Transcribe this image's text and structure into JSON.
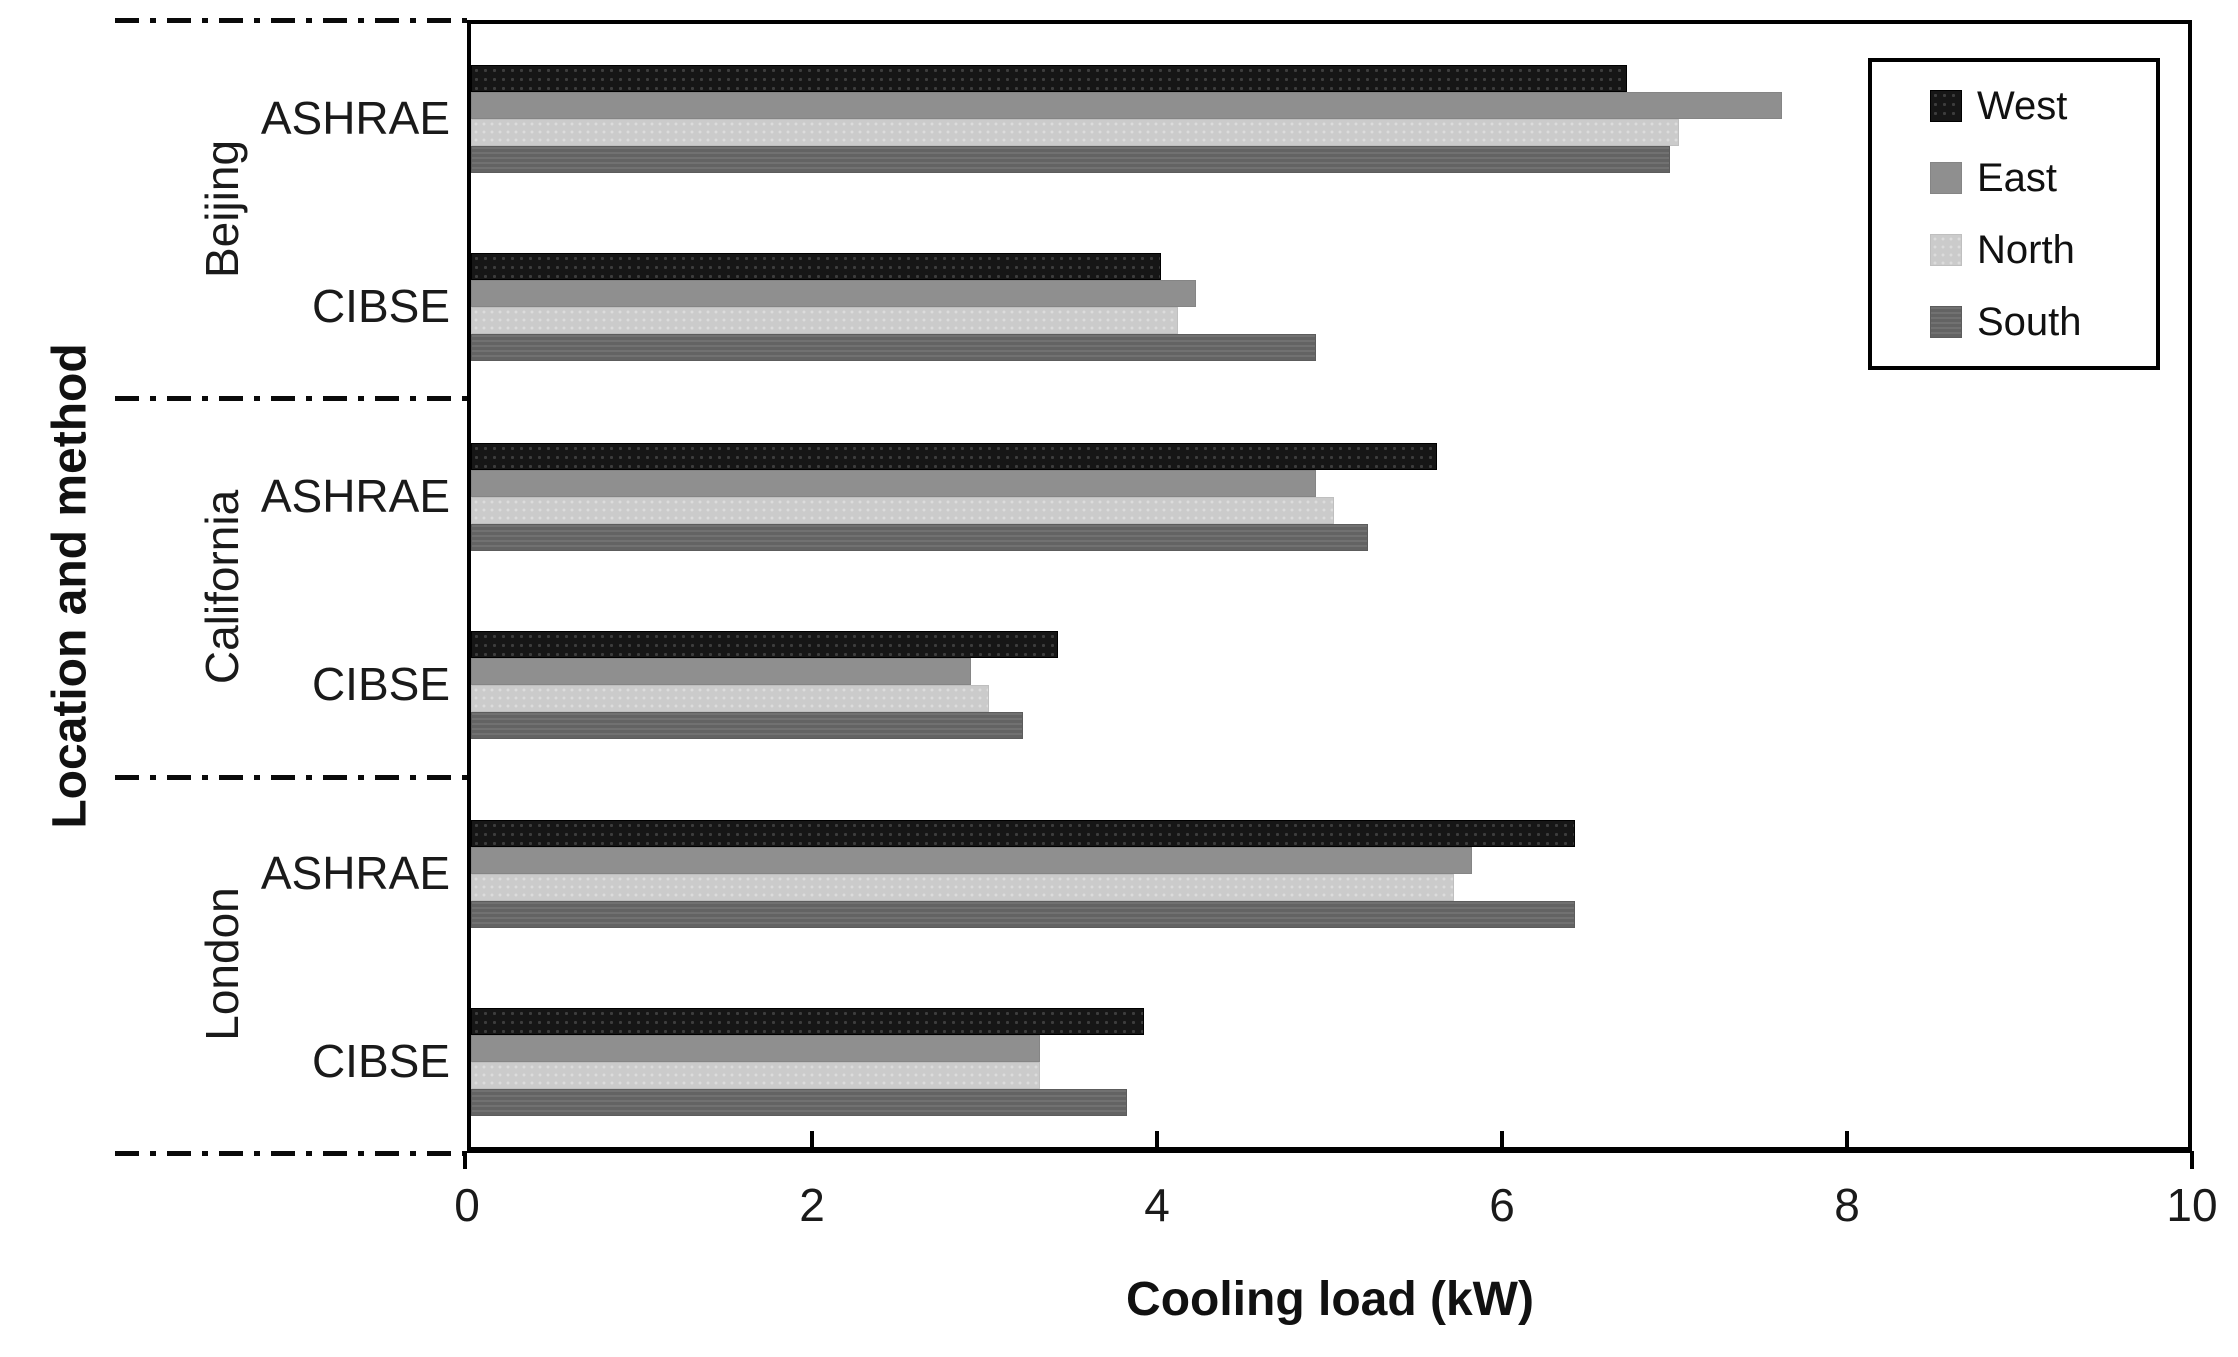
{
  "chart_data": {
    "type": "bar",
    "orientation": "horizontal",
    "title": "",
    "xlabel": "Cooling load (kW)",
    "ylabel": "Location and method",
    "xlim": [
      0,
      10
    ],
    "xtick_labels": [
      "0",
      "2",
      "4",
      "6",
      "8",
      "10"
    ],
    "xtick_values": [
      0,
      2,
      4,
      6,
      8,
      10
    ],
    "grid": "off",
    "legend": {
      "position": "top-right",
      "entries": [
        {
          "label": "West",
          "color": "#1a1a1a"
        },
        {
          "label": "East",
          "color": "#8f8f8f"
        },
        {
          "label": "North",
          "color": "#cbcbcb"
        },
        {
          "label": "South",
          "color": "#6e6e6e"
        }
      ]
    },
    "series_order": [
      "West",
      "East",
      "North",
      "South"
    ],
    "groups": [
      {
        "location": "Beijing",
        "methods": [
          {
            "label": "ASHRAE",
            "values": {
              "West": 6.7,
              "East": 7.6,
              "North": 7.0,
              "South": 6.95
            }
          },
          {
            "label": "CIBSE",
            "values": {
              "West": 4.0,
              "East": 4.2,
              "North": 4.1,
              "South": 4.9
            }
          }
        ]
      },
      {
        "location": "California",
        "methods": [
          {
            "label": "ASHRAE",
            "values": {
              "West": 5.6,
              "East": 4.9,
              "North": 5.0,
              "South": 5.2
            }
          },
          {
            "label": "CIBSE",
            "values": {
              "West": 3.4,
              "East": 2.9,
              "North": 3.0,
              "South": 3.2
            }
          }
        ]
      },
      {
        "location": "London",
        "methods": [
          {
            "label": "ASHRAE",
            "values": {
              "West": 6.4,
              "East": 5.8,
              "North": 5.7,
              "South": 6.4
            }
          },
          {
            "label": "CIBSE",
            "values": {
              "West": 3.9,
              "East": 3.3,
              "North": 3.3,
              "South": 3.8
            }
          }
        ]
      }
    ]
  }
}
